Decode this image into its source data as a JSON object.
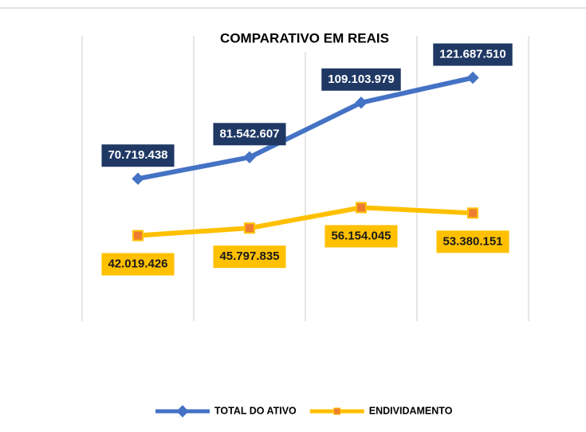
{
  "chart_data": {
    "type": "line",
    "title": "COMPARATIVO  EM REAIS",
    "categories": [
      null,
      null,
      null,
      null
    ],
    "series": [
      {
        "name": "TOTAL DO ATIVO",
        "color": "#4472c4",
        "values": [
          70719438,
          81542607,
          109103979,
          121687510
        ],
        "value_labels": [
          "70.719.438",
          "81.542.607",
          "109.103.979",
          "121.687.510"
        ]
      },
      {
        "name": "ENDIVIDAMENTO",
        "color": "#ffc000",
        "values": [
          42019426,
          45797835,
          56154045,
          53380151
        ],
        "value_labels": [
          "42.019.426",
          "45.797.835",
          "56.154.045",
          "53.380.151"
        ]
      }
    ],
    "ylim": [
      0,
      140000000
    ],
    "legend": "bottom"
  }
}
